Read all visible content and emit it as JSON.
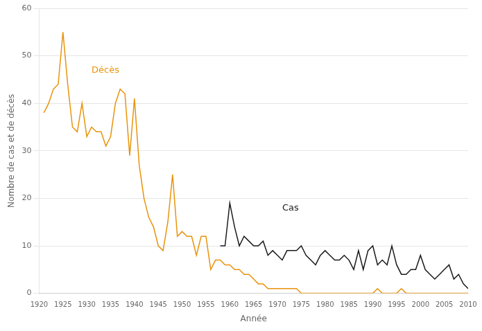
{
  "chart_data": {
    "type": "line",
    "xlabel": "Année",
    "ylabel": "Nombre de cas et de décès",
    "series": [
      {
        "color": "#E8930A",
        "x": [
          1921,
          1922,
          1923,
          1924,
          1925,
          1926,
          1927,
          1928,
          1929,
          1930,
          1931,
          1932,
          1933,
          1934,
          1935,
          1936,
          1937,
          1938,
          1939,
          1940,
          1941,
          1942,
          1943,
          1944,
          1945,
          1946,
          1947,
          1948,
          1949,
          1950,
          1951,
          1952,
          1953,
          1954,
          1955,
          1956,
          1957,
          1958,
          1959,
          1960,
          1961,
          1962,
          1963,
          1964,
          1965,
          1966,
          1967,
          1968,
          1969,
          1970,
          1971,
          1972,
          1973,
          1974,
          1975,
          1976,
          1977,
          1978,
          1979,
          1980,
          1981,
          1982,
          1983,
          1984,
          1985,
          1986,
          1987,
          1988,
          1989,
          1990,
          1991,
          1992,
          1993,
          1994,
          1995,
          1996,
          1997,
          1998,
          1999,
          2000,
          2001,
          2002,
          2003,
          2004,
          2005,
          2006,
          2007,
          2008,
          2009,
          2010
        ],
        "values": [
          38,
          40,
          43,
          44,
          55,
          44,
          35,
          34,
          40,
          33,
          35,
          34,
          34,
          31,
          33,
          40,
          43,
          42,
          29,
          41,
          27,
          20,
          16,
          14,
          10,
          9,
          15,
          25,
          12,
          13,
          12,
          12,
          8,
          12,
          12,
          5,
          7,
          7,
          6,
          6,
          5,
          5,
          4,
          4,
          3,
          2,
          2,
          1,
          1,
          1,
          1,
          1,
          1,
          1,
          0,
          0,
          0,
          0,
          0,
          0,
          0,
          0,
          0,
          0,
          0,
          0,
          0,
          0,
          0,
          0,
          1,
          0,
          0,
          0,
          0,
          1,
          0,
          0,
          0,
          0,
          0,
          0,
          0,
          0,
          0,
          0,
          0,
          0,
          0,
          0
        ]
      },
      {
        "color": "#1a1a1a",
        "x": [
          1958,
          1959,
          1960,
          1961,
          1962,
          1963,
          1964,
          1965,
          1966,
          1967,
          1968,
          1969,
          1970,
          1971,
          1972,
          1973,
          1974,
          1975,
          1976,
          1977,
          1978,
          1979,
          1980,
          1981,
          1982,
          1983,
          1984,
          1985,
          1986,
          1987,
          1988,
          1989,
          1990,
          1991,
          1992,
          1993,
          1994,
          1995,
          1996,
          1997,
          1998,
          1999,
          2000,
          2001,
          2002,
          2003,
          2004,
          2005,
          2006,
          2007,
          2008,
          2009,
          2010
        ],
        "values": [
          10,
          10,
          19,
          14,
          10,
          12,
          11,
          10,
          10,
          11,
          8,
          9,
          8,
          7,
          9,
          9,
          9,
          10,
          8,
          7,
          6,
          8,
          9,
          8,
          7,
          7,
          8,
          7,
          5,
          9,
          5,
          9,
          10,
          6,
          7,
          6,
          10,
          6,
          4,
          4,
          5,
          5,
          8,
          5,
          4,
          3,
          4,
          5,
          6,
          3,
          4,
          2,
          1
        ]
      }
    ],
    "annotations": [
      {
        "text": "Décès",
        "x": 1931,
        "y": 46,
        "color": "#E8930A"
      },
      {
        "text": "Cas",
        "x": 1971,
        "y": 17,
        "color": "#1a1a1a"
      }
    ],
    "xlim": [
      1920,
      2010
    ],
    "xticks": [
      1920,
      1925,
      1930,
      1935,
      1940,
      1945,
      1950,
      1955,
      1960,
      1965,
      1970,
      1975,
      1980,
      1985,
      1990,
      1995,
      2000,
      2005,
      2010
    ],
    "ylim": [
      0,
      60
    ],
    "yticks": [
      0,
      10,
      20,
      30,
      40,
      50,
      60
    ],
    "grid": "y"
  }
}
